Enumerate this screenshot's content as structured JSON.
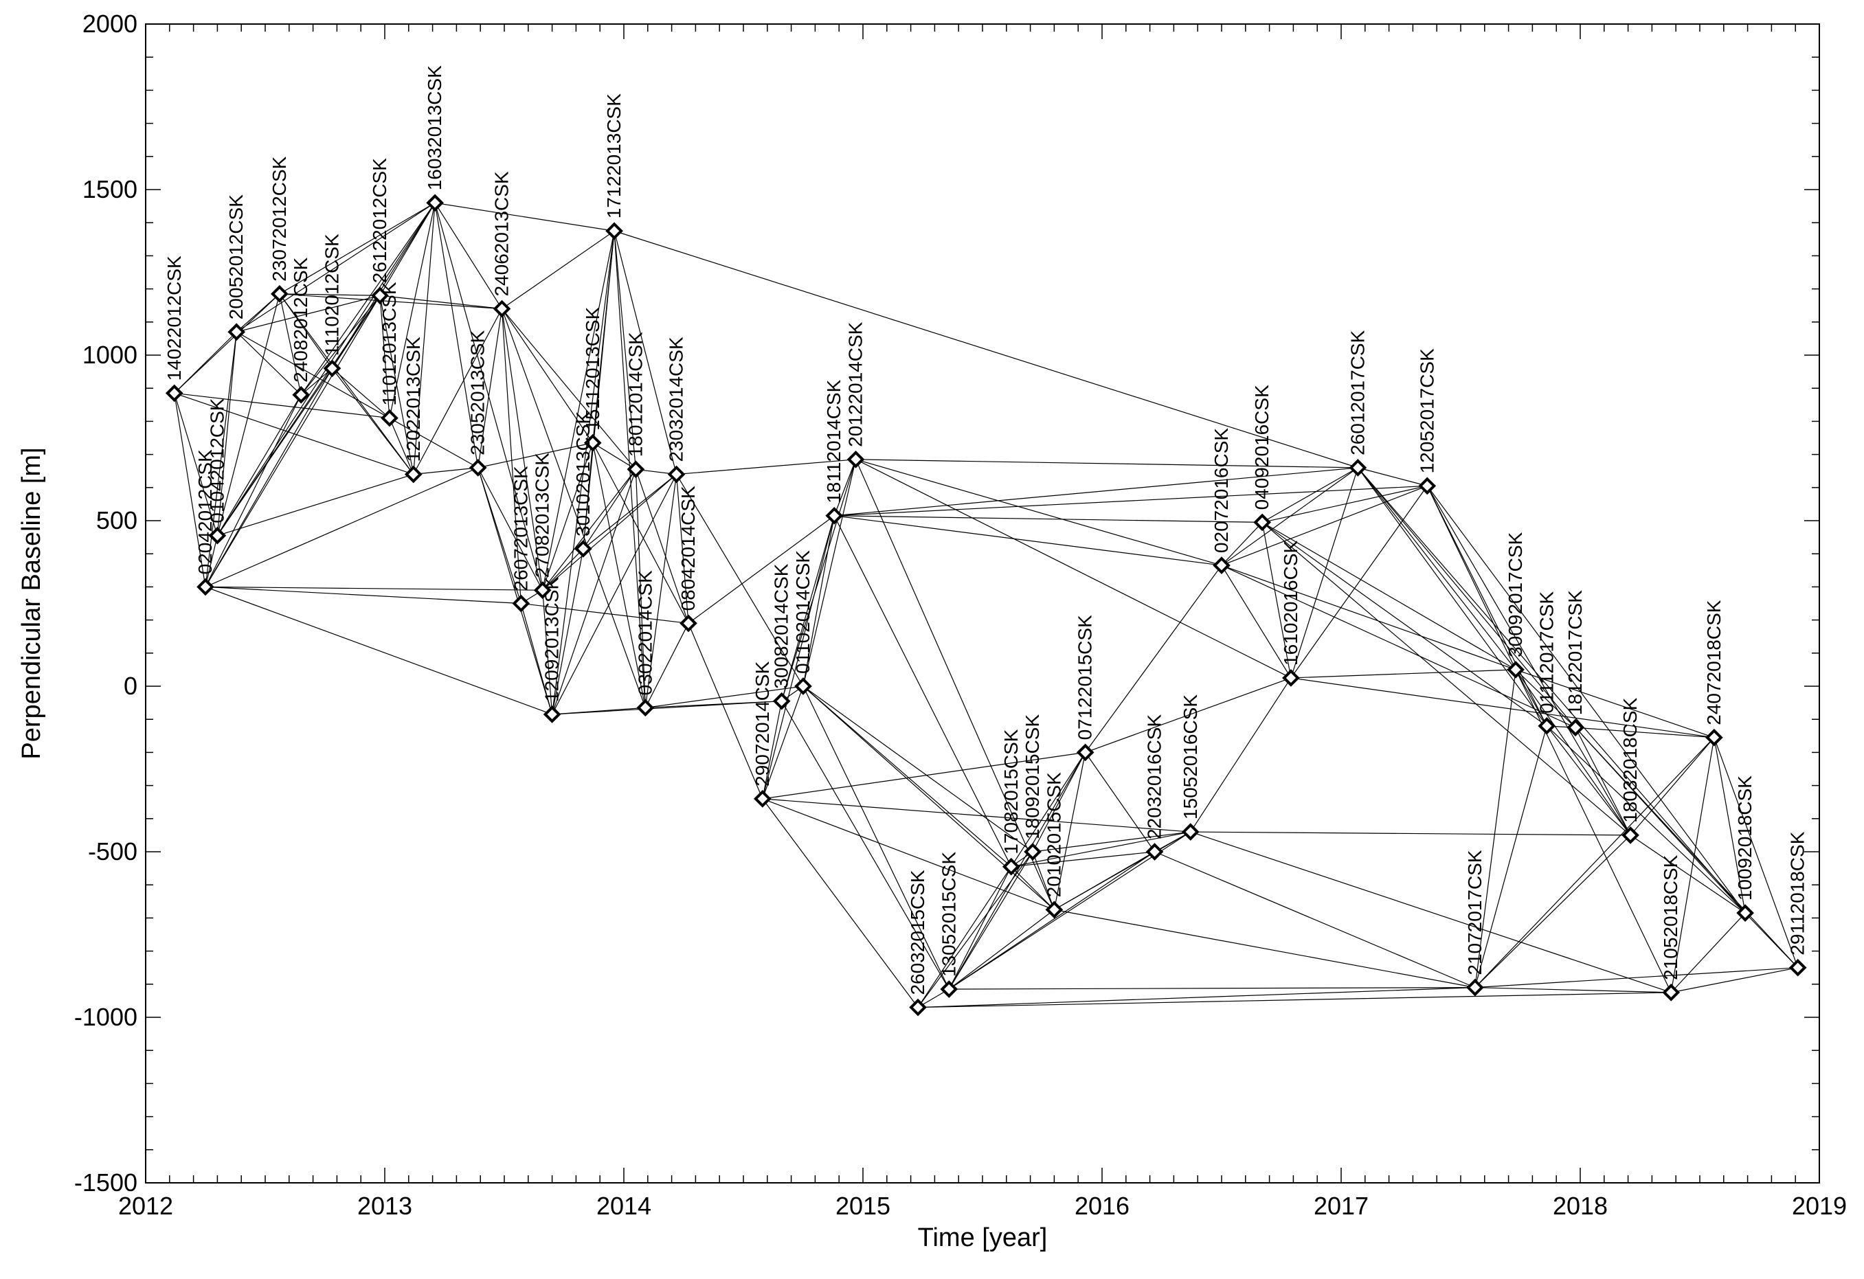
{
  "chart_data": {
    "type": "scatter",
    "title": "",
    "xlabel": "Time [year]",
    "ylabel": "Perpendicular Baseline [m]",
    "xlim": [
      2012,
      2019
    ],
    "ylim": [
      -1500,
      2000
    ],
    "xticks": [
      "2012",
      "2013",
      "2014",
      "2015",
      "2016",
      "2017",
      "2018",
      "2019"
    ],
    "yticks": [
      "-1500",
      "-1000",
      "-500",
      "0",
      "500",
      "1000",
      "1500",
      "2000"
    ],
    "grid": false,
    "legend": "none",
    "marker": "diamond",
    "colors": {
      "line": "#000000",
      "marker": "#000000",
      "background": "#ffffff"
    },
    "points": [
      {
        "label": "14022012CSK",
        "x": 2012.12,
        "y": 885
      },
      {
        "label": "02042012CSK",
        "x": 2012.25,
        "y": 300
      },
      {
        "label": "01042012CSK",
        "x": 2012.3,
        "y": 455
      },
      {
        "label": "20052012CSK",
        "x": 2012.38,
        "y": 1070
      },
      {
        "label": "23072012CSK",
        "x": 2012.56,
        "y": 1185
      },
      {
        "label": "24082012CSK",
        "x": 2012.65,
        "y": 880
      },
      {
        "label": "11102012CSK",
        "x": 2012.78,
        "y": 960
      },
      {
        "label": "26122012CSK",
        "x": 2012.98,
        "y": 1180
      },
      {
        "label": "11012013CSK",
        "x": 2013.02,
        "y": 810
      },
      {
        "label": "12022013CSK",
        "x": 2013.12,
        "y": 640
      },
      {
        "label": "16032013CSK",
        "x": 2013.21,
        "y": 1460
      },
      {
        "label": "23052013CSK",
        "x": 2013.39,
        "y": 660
      },
      {
        "label": "24062013CSK",
        "x": 2013.49,
        "y": 1140
      },
      {
        "label": "26072013CSK",
        "x": 2013.57,
        "y": 250
      },
      {
        "label": "27082013CSK",
        "x": 2013.66,
        "y": 290
      },
      {
        "label": "12092013CSK",
        "x": 2013.7,
        "y": -85
      },
      {
        "label": "30102013CSK",
        "x": 2013.83,
        "y": 415
      },
      {
        "label": "15112013CSK",
        "x": 2013.87,
        "y": 735
      },
      {
        "label": "17122013CSK",
        "x": 2013.96,
        "y": 1375
      },
      {
        "label": "18012014CSK",
        "x": 2014.05,
        "y": 655
      },
      {
        "label": "03022014CSK",
        "x": 2014.09,
        "y": -65
      },
      {
        "label": "23032014CSK",
        "x": 2014.22,
        "y": 640
      },
      {
        "label": "08042014CSK",
        "x": 2014.27,
        "y": 190
      },
      {
        "label": "29072014CSK",
        "x": 2014.58,
        "y": -340
      },
      {
        "label": "30082014CSK",
        "x": 2014.66,
        "y": -45
      },
      {
        "label": "01102014CSK",
        "x": 2014.75,
        "y": 0
      },
      {
        "label": "18112014CSK",
        "x": 2014.88,
        "y": 515
      },
      {
        "label": "20122014CSK",
        "x": 2014.97,
        "y": 685
      },
      {
        "label": "26032015CSK",
        "x": 2015.23,
        "y": -970
      },
      {
        "label": "13052015CSK",
        "x": 2015.36,
        "y": -915
      },
      {
        "label": "17082015CSK",
        "x": 2015.62,
        "y": -545
      },
      {
        "label": "18092015CSK",
        "x": 2015.71,
        "y": -500
      },
      {
        "label": "20102015CSK",
        "x": 2015.8,
        "y": -675
      },
      {
        "label": "07122015CSK",
        "x": 2015.93,
        "y": -200
      },
      {
        "label": "22032016CSK",
        "x": 2016.22,
        "y": -500
      },
      {
        "label": "15052016CSK",
        "x": 2016.37,
        "y": -440
      },
      {
        "label": "02072016CSK",
        "x": 2016.5,
        "y": 365
      },
      {
        "label": "04092016CSK",
        "x": 2016.67,
        "y": 495
      },
      {
        "label": "16102016CSK",
        "x": 2016.79,
        "y": 25
      },
      {
        "label": "26012017CSK",
        "x": 2017.07,
        "y": 660
      },
      {
        "label": "12052017CSK",
        "x": 2017.36,
        "y": 605
      },
      {
        "label": "21072017CSK",
        "x": 2017.56,
        "y": -910
      },
      {
        "label": "30092017CSK",
        "x": 2017.73,
        "y": 50
      },
      {
        "label": "01112017CSK",
        "x": 2017.86,
        "y": -120
      },
      {
        "label": "18122017CSK",
        "x": 2017.98,
        "y": -125
      },
      {
        "label": "18032018CSK",
        "x": 2018.21,
        "y": -450
      },
      {
        "label": "21052018CSK",
        "x": 2018.38,
        "y": -925
      },
      {
        "label": "24072018CSK",
        "x": 2018.56,
        "y": -155
      },
      {
        "label": "10092018CSK",
        "x": 2018.69,
        "y": -685
      },
      {
        "label": "29112018CSK",
        "x": 2018.91,
        "y": -850
      }
    ],
    "connections": [
      [
        "14022012CSK",
        "02042012CSK"
      ],
      [
        "14022012CSK",
        "01042012CSK"
      ],
      [
        "14022012CSK",
        "20052012CSK"
      ],
      [
        "14022012CSK",
        "23072012CSK"
      ],
      [
        "14022012CSK",
        "11012013CSK"
      ],
      [
        "14022012CSK",
        "12022013CSK"
      ],
      [
        "02042012CSK",
        "01042012CSK"
      ],
      [
        "02042012CSK",
        "20052012CSK"
      ],
      [
        "02042012CSK",
        "24082012CSK"
      ],
      [
        "02042012CSK",
        "11102012CSK"
      ],
      [
        "02042012CSK",
        "26122012CSK"
      ],
      [
        "02042012CSK",
        "23052013CSK"
      ],
      [
        "02042012CSK",
        "26072013CSK"
      ],
      [
        "02042012CSK",
        "27082013CSK"
      ],
      [
        "02042012CSK",
        "12092013CSK"
      ],
      [
        "01042012CSK",
        "20052012CSK"
      ],
      [
        "01042012CSK",
        "23072012CSK"
      ],
      [
        "01042012CSK",
        "24082012CSK"
      ],
      [
        "01042012CSK",
        "11102012CSK"
      ],
      [
        "01042012CSK",
        "26122012CSK"
      ],
      [
        "01042012CSK",
        "12022013CSK"
      ],
      [
        "01042012CSK",
        "16032013CSK"
      ],
      [
        "20052012CSK",
        "23072012CSK"
      ],
      [
        "20052012CSK",
        "24082012CSK"
      ],
      [
        "20052012CSK",
        "26122012CSK"
      ],
      [
        "20052012CSK",
        "16032013CSK"
      ],
      [
        "20052012CSK",
        "11012013CSK"
      ],
      [
        "23072012CSK",
        "24082012CSK"
      ],
      [
        "23072012CSK",
        "11102012CSK"
      ],
      [
        "23072012CSK",
        "26122012CSK"
      ],
      [
        "23072012CSK",
        "16032013CSK"
      ],
      [
        "23072012CSK",
        "12022013CSK"
      ],
      [
        "23072012CSK",
        "24062013CSK"
      ],
      [
        "24082012CSK",
        "11102012CSK"
      ],
      [
        "24082012CSK",
        "26122012CSK"
      ],
      [
        "24082012CSK",
        "16032013CSK"
      ],
      [
        "11102012CSK",
        "26122012CSK"
      ],
      [
        "11102012CSK",
        "11012013CSK"
      ],
      [
        "11102012CSK",
        "12022013CSK"
      ],
      [
        "11102012CSK",
        "16032013CSK"
      ],
      [
        "26122012CSK",
        "11012013CSK"
      ],
      [
        "26122012CSK",
        "16032013CSK"
      ],
      [
        "26122012CSK",
        "24062013CSK"
      ],
      [
        "26122012CSK",
        "12022013CSK"
      ],
      [
        "11012013CSK",
        "12022013CSK"
      ],
      [
        "11012013CSK",
        "16032013CSK"
      ],
      [
        "11012013CSK",
        "23052013CSK"
      ],
      [
        "12022013CSK",
        "16032013CSK"
      ],
      [
        "12022013CSK",
        "23052013CSK"
      ],
      [
        "12022013CSK",
        "24062013CSK"
      ],
      [
        "16032013CSK",
        "23052013CSK"
      ],
      [
        "16032013CSK",
        "24062013CSK"
      ],
      [
        "16032013CSK",
        "27082013CSK"
      ],
      [
        "16032013CSK",
        "17122013CSK"
      ],
      [
        "23052013CSK",
        "24062013CSK"
      ],
      [
        "23052013CSK",
        "26072013CSK"
      ],
      [
        "23052013CSK",
        "27082013CSK"
      ],
      [
        "23052013CSK",
        "15112013CSK"
      ],
      [
        "23052013CSK",
        "12092013CSK"
      ],
      [
        "24062013CSK",
        "26072013CSK"
      ],
      [
        "24062013CSK",
        "27082013CSK"
      ],
      [
        "24062013CSK",
        "15112013CSK"
      ],
      [
        "24062013CSK",
        "17122013CSK"
      ],
      [
        "24062013CSK",
        "18012014CSK"
      ],
      [
        "24062013CSK",
        "03022014CSK"
      ],
      [
        "26072013CSK",
        "27082013CSK"
      ],
      [
        "26072013CSK",
        "12092013CSK"
      ],
      [
        "26072013CSK",
        "08042014CSK"
      ],
      [
        "27082013CSK",
        "12092013CSK"
      ],
      [
        "27082013CSK",
        "30102013CSK"
      ],
      [
        "27082013CSK",
        "15112013CSK"
      ],
      [
        "27082013CSK",
        "17122013CSK"
      ],
      [
        "27082013CSK",
        "18012014CSK"
      ],
      [
        "27082013CSK",
        "23032014CSK"
      ],
      [
        "12092013CSK",
        "30102013CSK"
      ],
      [
        "12092013CSK",
        "03022014CSK"
      ],
      [
        "12092013CSK",
        "17122013CSK"
      ],
      [
        "12092013CSK",
        "18012014CSK"
      ],
      [
        "12092013CSK",
        "23032014CSK"
      ],
      [
        "12092013CSK",
        "30082014CSK"
      ],
      [
        "30102013CSK",
        "15112013CSK"
      ],
      [
        "30102013CSK",
        "17122013CSK"
      ],
      [
        "30102013CSK",
        "18012014CSK"
      ],
      [
        "30102013CSK",
        "23032014CSK"
      ],
      [
        "15112013CSK",
        "17122013CSK"
      ],
      [
        "15112013CSK",
        "18012014CSK"
      ],
      [
        "15112013CSK",
        "08042014CSK"
      ],
      [
        "15112013CSK",
        "03022014CSK"
      ],
      [
        "17122013CSK",
        "18012014CSK"
      ],
      [
        "17122013CSK",
        "03022014CSK"
      ],
      [
        "17122013CSK",
        "23032014CSK"
      ],
      [
        "17122013CSK",
        "26012017CSK"
      ],
      [
        "18012014CSK",
        "03022014CSK"
      ],
      [
        "18012014CSK",
        "23032014CSK"
      ],
      [
        "18012014CSK",
        "08042014CSK"
      ],
      [
        "03022014CSK",
        "23032014CSK"
      ],
      [
        "03022014CSK",
        "08042014CSK"
      ],
      [
        "03022014CSK",
        "30082014CSK"
      ],
      [
        "03022014CSK",
        "01102014CSK"
      ],
      [
        "23032014CSK",
        "08042014CSK"
      ],
      [
        "23032014CSK",
        "20122014CSK"
      ],
      [
        "23032014CSK",
        "01102014CSK"
      ],
      [
        "08042014CSK",
        "29072014CSK"
      ],
      [
        "08042014CSK",
        "18112014CSK"
      ],
      [
        "29072014CSK",
        "30082014CSK"
      ],
      [
        "29072014CSK",
        "01102014CSK"
      ],
      [
        "29072014CSK",
        "18112014CSK"
      ],
      [
        "29072014CSK",
        "26032015CSK"
      ],
      [
        "29072014CSK",
        "07122015CSK"
      ],
      [
        "29072014CSK",
        "20102015CSK"
      ],
      [
        "29072014CSK",
        "15052016CSK"
      ],
      [
        "30082014CSK",
        "01102014CSK"
      ],
      [
        "30082014CSK",
        "18112014CSK"
      ],
      [
        "30082014CSK",
        "20122014CSK"
      ],
      [
        "30082014CSK",
        "13052015CSK"
      ],
      [
        "01102014CSK",
        "18112014CSK"
      ],
      [
        "01102014CSK",
        "20122014CSK"
      ],
      [
        "01102014CSK",
        "13052015CSK"
      ],
      [
        "01102014CSK",
        "17082015CSK"
      ],
      [
        "01102014CSK",
        "18092015CSK"
      ],
      [
        "01102014CSK",
        "20102015CSK"
      ],
      [
        "18112014CSK",
        "20122014CSK"
      ],
      [
        "18112014CSK",
        "17082015CSK"
      ],
      [
        "18112014CSK",
        "02072016CSK"
      ],
      [
        "18112014CSK",
        "04092016CSK"
      ],
      [
        "18112014CSK",
        "26012017CSK"
      ],
      [
        "18112014CSK",
        "12052017CSK"
      ],
      [
        "20122014CSK",
        "20102015CSK"
      ],
      [
        "20122014CSK",
        "02072016CSK"
      ],
      [
        "20122014CSK",
        "16102016CSK"
      ],
      [
        "20122014CSK",
        "26012017CSK"
      ],
      [
        "26032015CSK",
        "13052015CSK"
      ],
      [
        "26032015CSK",
        "17082015CSK"
      ],
      [
        "26032015CSK",
        "18092015CSK"
      ],
      [
        "26032015CSK",
        "21072017CSK"
      ],
      [
        "26032015CSK",
        "21052018CSK"
      ],
      [
        "13052015CSK",
        "17082015CSK"
      ],
      [
        "13052015CSK",
        "18092015CSK"
      ],
      [
        "13052015CSK",
        "20102015CSK"
      ],
      [
        "13052015CSK",
        "07122015CSK"
      ],
      [
        "13052015CSK",
        "22032016CSK"
      ],
      [
        "13052015CSK",
        "15052016CSK"
      ],
      [
        "13052015CSK",
        "21072017CSK"
      ],
      [
        "17082015CSK",
        "18092015CSK"
      ],
      [
        "17082015CSK",
        "20102015CSK"
      ],
      [
        "17082015CSK",
        "07122015CSK"
      ],
      [
        "17082015CSK",
        "22032016CSK"
      ],
      [
        "17082015CSK",
        "15052016CSK"
      ],
      [
        "18092015CSK",
        "20102015CSK"
      ],
      [
        "18092015CSK",
        "07122015CSK"
      ],
      [
        "18092015CSK",
        "15052016CSK"
      ],
      [
        "20102015CSK",
        "07122015CSK"
      ],
      [
        "20102015CSK",
        "22032016CSK"
      ],
      [
        "20102015CSK",
        "15052016CSK"
      ],
      [
        "20102015CSK",
        "21072017CSK"
      ],
      [
        "07122015CSK",
        "22032016CSK"
      ],
      [
        "07122015CSK",
        "02072016CSK"
      ],
      [
        "07122015CSK",
        "16102016CSK"
      ],
      [
        "22032016CSK",
        "15052016CSK"
      ],
      [
        "22032016CSK",
        "21072017CSK"
      ],
      [
        "15052016CSK",
        "16102016CSK"
      ],
      [
        "15052016CSK",
        "18032018CSK"
      ],
      [
        "15052016CSK",
        "21052018CSK"
      ],
      [
        "02072016CSK",
        "04092016CSK"
      ],
      [
        "02072016CSK",
        "16102016CSK"
      ],
      [
        "02072016CSK",
        "26012017CSK"
      ],
      [
        "02072016CSK",
        "12052017CSK"
      ],
      [
        "02072016CSK",
        "30092017CSK"
      ],
      [
        "02072016CSK",
        "18122017CSK"
      ],
      [
        "04092016CSK",
        "16102016CSK"
      ],
      [
        "04092016CSK",
        "26012017CSK"
      ],
      [
        "04092016CSK",
        "12052017CSK"
      ],
      [
        "04092016CSK",
        "30092017CSK"
      ],
      [
        "04092016CSK",
        "01112017CSK"
      ],
      [
        "04092016CSK",
        "18032018CSK"
      ],
      [
        "16102016CSK",
        "26012017CSK"
      ],
      [
        "16102016CSK",
        "12052017CSK"
      ],
      [
        "16102016CSK",
        "30092017CSK"
      ],
      [
        "16102016CSK",
        "24072018CSK"
      ],
      [
        "26012017CSK",
        "12052017CSK"
      ],
      [
        "26012017CSK",
        "30092017CSK"
      ],
      [
        "26012017CSK",
        "01112017CSK"
      ],
      [
        "26012017CSK",
        "18122017CSK"
      ],
      [
        "26012017CSK",
        "10092018CSK"
      ],
      [
        "12052017CSK",
        "30092017CSK"
      ],
      [
        "12052017CSK",
        "01112017CSK"
      ],
      [
        "12052017CSK",
        "18032018CSK"
      ],
      [
        "12052017CSK",
        "10092018CSK"
      ],
      [
        "21072017CSK",
        "30092017CSK"
      ],
      [
        "21072017CSK",
        "01112017CSK"
      ],
      [
        "21072017CSK",
        "18032018CSK"
      ],
      [
        "21072017CSK",
        "21052018CSK"
      ],
      [
        "21072017CSK",
        "24072018CSK"
      ],
      [
        "21072017CSK",
        "29112018CSK"
      ],
      [
        "30092017CSK",
        "01112017CSK"
      ],
      [
        "30092017CSK",
        "18122017CSK"
      ],
      [
        "30092017CSK",
        "18032018CSK"
      ],
      [
        "30092017CSK",
        "24072018CSK"
      ],
      [
        "30092017CSK",
        "21052018CSK"
      ],
      [
        "01112017CSK",
        "18122017CSK"
      ],
      [
        "01112017CSK",
        "18032018CSK"
      ],
      [
        "01112017CSK",
        "10092018CSK"
      ],
      [
        "18122017CSK",
        "18032018CSK"
      ],
      [
        "18122017CSK",
        "10092018CSK"
      ],
      [
        "18122017CSK",
        "29112018CSK"
      ],
      [
        "18122017CSK",
        "24072018CSK"
      ],
      [
        "18032018CSK",
        "24072018CSK"
      ],
      [
        "18032018CSK",
        "10092018CSK"
      ],
      [
        "21052018CSK",
        "24072018CSK"
      ],
      [
        "21052018CSK",
        "10092018CSK"
      ],
      [
        "21052018CSK",
        "29112018CSK"
      ],
      [
        "24072018CSK",
        "10092018CSK"
      ],
      [
        "24072018CSK",
        "29112018CSK"
      ],
      [
        "10092018CSK",
        "29112018CSK"
      ]
    ]
  }
}
